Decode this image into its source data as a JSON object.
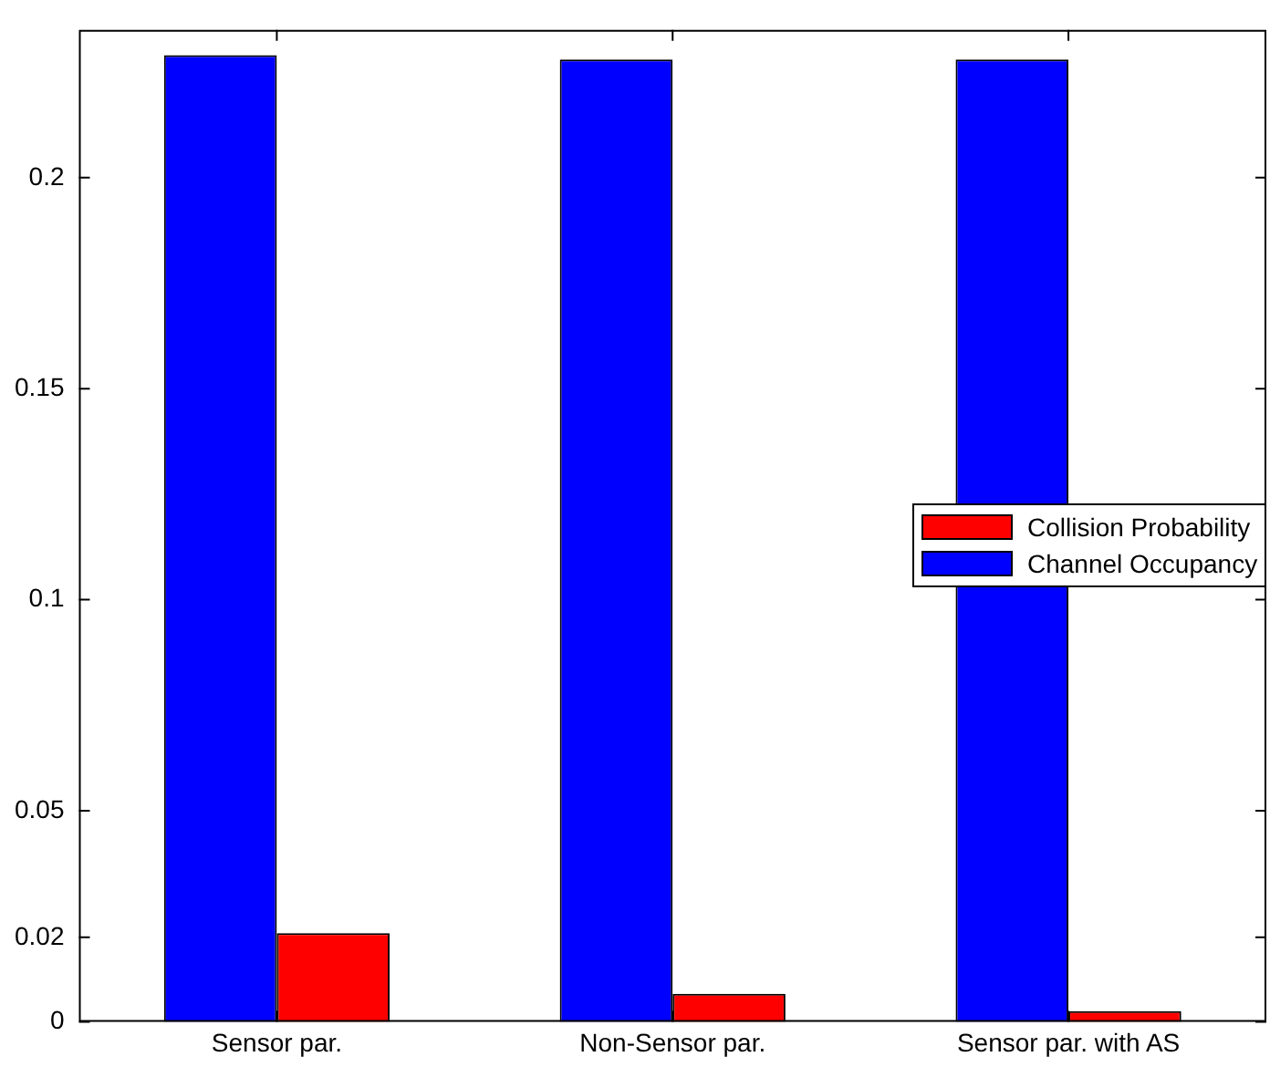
{
  "chart_data": {
    "type": "bar",
    "categories": [
      "Sensor par.",
      "Non-Sensor par.",
      "Sensor par. with AS"
    ],
    "series": [
      {
        "name": "Collision Probability",
        "color": "#ff0000",
        "values": [
          0.021,
          0.0066,
          0.0025
        ]
      },
      {
        "name": "Channel Occupancy",
        "color": "#0000ff",
        "values": [
          0.229,
          0.228,
          0.228
        ]
      }
    ],
    "ylim": [
      0,
      0.235
    ],
    "yticks": [
      0,
      0.02,
      0.05,
      0.1,
      0.15,
      0.2
    ],
    "grid": false,
    "legend": "right"
  }
}
